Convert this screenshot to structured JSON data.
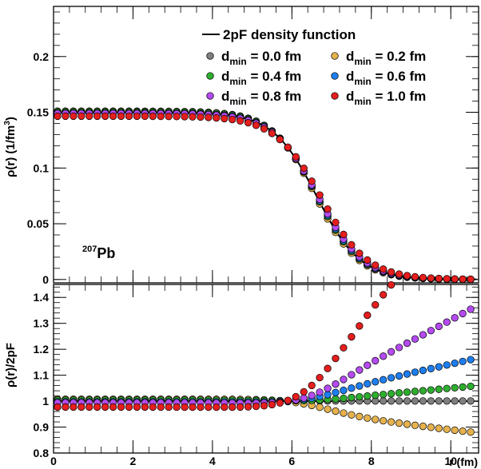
{
  "chart_data": [
    {
      "type": "scatter",
      "panel": "top",
      "ylabel": "ρ(r) (1/fm³)",
      "ylabel_parts": {
        "main": "ρ(r) (1/fm",
        "sup": "3",
        "close": ")"
      },
      "annotation": {
        "sup": "207",
        "base": "Pb"
      },
      "xlim": [
        0,
        10.7
      ],
      "ylim": [
        -0.003,
        0.245
      ],
      "yticks": [
        0,
        0.05,
        0.1,
        0.15,
        0.2
      ],
      "ytick_labels": [
        "0",
        "0.05",
        "0.1",
        "0.15",
        "0.2"
      ],
      "grid": false,
      "legend_placement": "top-right",
      "line": {
        "name": "2pF density function",
        "rho0": 0.1499,
        "R": 6.62,
        "a": 0.546
      },
      "series": [
        {
          "name": "d_min = 0.0 fm",
          "label": "0.0 fm",
          "color": "#7f7f7f",
          "rho0": 0.15,
          "R": 6.62,
          "a": 0.546
        },
        {
          "name": "d_min = 0.2 fm",
          "label": "0.2 fm",
          "color": "#e6b24d",
          "rho0": 0.151,
          "R": 6.59,
          "a": 0.54
        },
        {
          "name": "d_min = 0.4 fm",
          "label": "0.4 fm",
          "color": "#2eae2e",
          "rho0": 0.1505,
          "R": 6.62,
          "a": 0.55
        },
        {
          "name": "d_min = 0.6 fm",
          "label": "0.6 fm",
          "color": "#1e7ef0",
          "rho0": 0.1495,
          "R": 6.64,
          "a": 0.555
        },
        {
          "name": "d_min = 0.8 fm",
          "label": "0.8 fm",
          "color": "#b44bf0",
          "rho0": 0.149,
          "R": 6.66,
          "a": 0.565
        },
        {
          "name": "d_min = 1.0 fm",
          "label": "1.0 fm",
          "color": "#e51e1e",
          "rho0": 0.1465,
          "R": 6.74,
          "a": 0.58
        }
      ],
      "r_points": {
        "start": 0.1,
        "step": 0.2,
        "count": 53
      }
    },
    {
      "type": "scatter",
      "panel": "bottom",
      "ylabel": "ρ(r)/2pF",
      "xlabel": "r (fm)",
      "xlim": [
        0,
        10.7
      ],
      "ylim": [
        0.8,
        1.45
      ],
      "xticks": [
        0,
        2,
        4,
        6,
        8,
        10
      ],
      "xtick_labels": [
        "0",
        "2",
        "4",
        "6",
        "8",
        "10"
      ],
      "yticks": [
        0.8,
        0.9,
        1.0,
        1.1,
        1.2,
        1.3,
        1.4
      ],
      "ytick_labels": [
        "0.8",
        "0.9",
        "1",
        "1.1",
        "1.2",
        "1.3",
        "1.4"
      ],
      "reference_line": 1.0,
      "grid": false
    }
  ]
}
